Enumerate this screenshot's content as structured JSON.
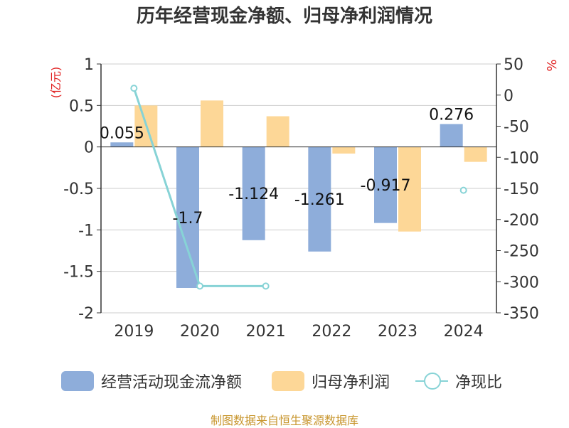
{
  "title": "历年经营现金净额、归母净利润情况",
  "source_note": "制图数据来自恒生聚源数据库",
  "colors": {
    "cash": "#8eadda",
    "profit": "#fdd797",
    "ratio": "#87d3d6",
    "unit_red": "#e02020",
    "axis": "#333333",
    "grid": "#cccccc"
  },
  "legend": [
    {
      "label": "经营活动现金流净额",
      "kind": "bar",
      "color": "#8eadda"
    },
    {
      "label": "归母净利润",
      "kind": "bar",
      "color": "#fdd797"
    },
    {
      "label": "净现比",
      "kind": "line",
      "color": "#87d3d6"
    }
  ],
  "chart_data": {
    "type": "bar",
    "title": "历年经营现金净额、归母净利润情况",
    "categories": [
      "2019",
      "2020",
      "2021",
      "2022",
      "2023",
      "2024"
    ],
    "left_axis": {
      "unit": "(亿元)",
      "range": [
        -2,
        1
      ],
      "ticks": [
        1,
        0.5,
        0,
        -0.5,
        -1,
        -1.5,
        -2
      ],
      "tick_labels": [
        "1",
        "0.5",
        "0",
        "-0.5",
        "-1",
        "-1.5",
        "-2"
      ]
    },
    "right_axis": {
      "unit": "%",
      "range": [
        -350,
        50
      ],
      "ticks": [
        50,
        0,
        -50,
        -100,
        -150,
        -200,
        -250,
        -300,
        -350
      ],
      "tick_labels": [
        "50",
        "0",
        "-50",
        "-100",
        "-150",
        "-200",
        "-250",
        "-300",
        "-350"
      ]
    },
    "grid": true,
    "legend_position": "bottom",
    "series": [
      {
        "name": "经营活动现金流净额",
        "type": "bar",
        "axis": "left",
        "values": [
          0.055,
          -1.7,
          -1.124,
          -1.261,
          -0.917,
          0.276
        ],
        "labels": [
          "0.055",
          "-1.7",
          "-1.124",
          "-1.261",
          "-0.917",
          "0.276"
        ]
      },
      {
        "name": "归母净利润",
        "type": "bar",
        "axis": "left",
        "values": [
          0.5,
          0.56,
          0.37,
          -0.08,
          -1.02,
          -0.18
        ]
      },
      {
        "name": "净现比",
        "type": "line",
        "axis": "right",
        "values": [
          11,
          -307,
          -307,
          null,
          null,
          -153
        ]
      }
    ]
  }
}
